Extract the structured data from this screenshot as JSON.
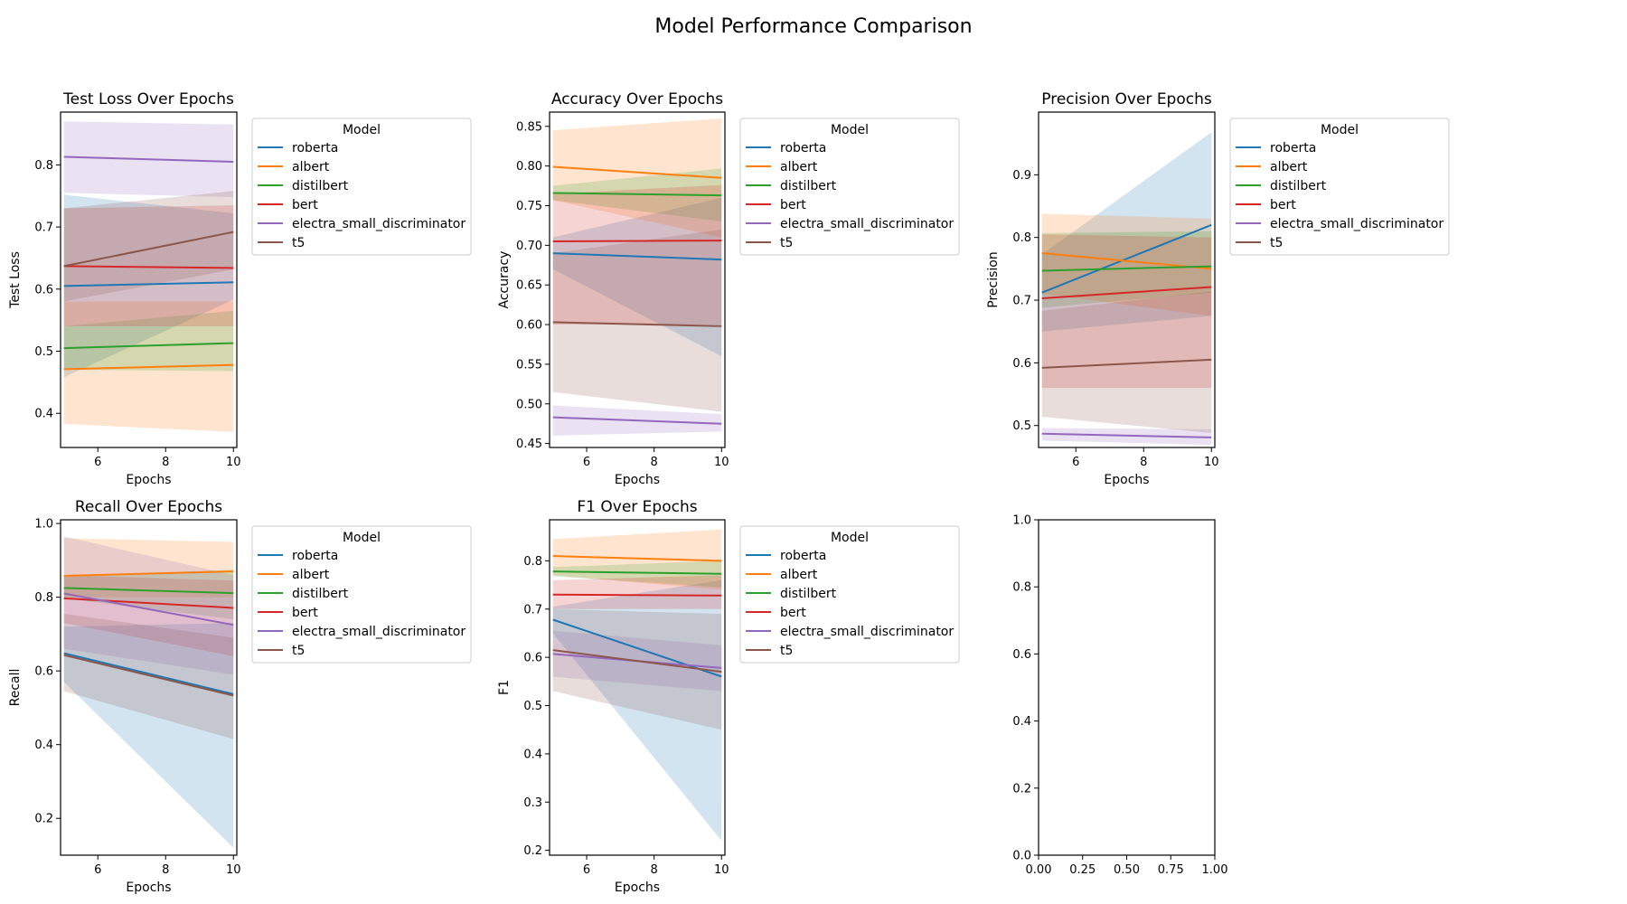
{
  "figure_title": "Model Performance Comparison",
  "legend_title": "Model",
  "colors": {
    "roberta": "#1f77b4",
    "albert": "#ff7f0e",
    "distilbert": "#2ca02c",
    "bert": "#d62728",
    "electra_small_discriminator": "#9467bd",
    "t5": "#8c564b"
  },
  "chart_data": [
    {
      "type": "line",
      "title": "Test Loss Over Epochs",
      "xlabel": "Epochs",
      "ylabel": "Test Loss",
      "xlim": [
        4.9,
        10.1
      ],
      "ylim": [
        0.345,
        0.885
      ],
      "xticks": [
        6,
        8,
        10
      ],
      "yticks": [
        0.4,
        0.5,
        0.6,
        0.7,
        0.8
      ],
      "x": [
        5,
        10
      ],
      "legend": "outside-right",
      "series": [
        {
          "name": "roberta",
          "values": [
            0.605,
            0.611
          ],
          "lower": [
            0.458,
            0.583
          ],
          "upper": [
            0.752,
            0.722
          ]
        },
        {
          "name": "albert",
          "values": [
            0.471,
            0.478
          ],
          "lower": [
            0.383,
            0.37
          ],
          "upper": [
            0.58,
            0.58
          ]
        },
        {
          "name": "distilbert",
          "values": [
            0.505,
            0.513
          ],
          "lower": [
            0.47,
            0.468
          ],
          "upper": [
            0.54,
            0.565
          ]
        },
        {
          "name": "bert",
          "values": [
            0.637,
            0.634
          ],
          "lower": [
            0.54,
            0.54
          ],
          "upper": [
            0.73,
            0.735
          ]
        },
        {
          "name": "electra_small_discriminator",
          "values": [
            0.813,
            0.805
          ],
          "lower": [
            0.755,
            0.748
          ],
          "upper": [
            0.87,
            0.865
          ]
        },
        {
          "name": "t5",
          "values": [
            0.637,
            0.692
          ],
          "lower": [
            0.58,
            0.632
          ],
          "upper": [
            0.73,
            0.758
          ]
        }
      ]
    },
    {
      "type": "line",
      "title": "Accuracy Over Epochs",
      "xlabel": "Epochs",
      "ylabel": "Accuracy",
      "xlim": [
        4.9,
        10.1
      ],
      "ylim": [
        0.445,
        0.868
      ],
      "xticks": [
        6,
        8,
        10
      ],
      "yticks": [
        0.45,
        0.5,
        0.55,
        0.6,
        0.65,
        0.7,
        0.75,
        0.8,
        0.85
      ],
      "x": [
        5,
        10
      ],
      "legend": "outside-right",
      "series": [
        {
          "name": "roberta",
          "values": [
            0.69,
            0.682
          ],
          "lower": [
            0.67,
            0.56
          ],
          "upper": [
            0.71,
            0.76
          ]
        },
        {
          "name": "albert",
          "values": [
            0.799,
            0.785
          ],
          "lower": [
            0.757,
            0.71
          ],
          "upper": [
            0.845,
            0.86
          ]
        },
        {
          "name": "distilbert",
          "values": [
            0.766,
            0.763
          ],
          "lower": [
            0.757,
            0.73
          ],
          "upper": [
            0.775,
            0.797
          ]
        },
        {
          "name": "bert",
          "values": [
            0.705,
            0.706
          ],
          "lower": [
            0.6,
            0.6
          ],
          "upper": [
            0.765,
            0.776
          ]
        },
        {
          "name": "electra_small_discriminator",
          "values": [
            0.483,
            0.475
          ],
          "lower": [
            0.46,
            0.465
          ],
          "upper": [
            0.498,
            0.487
          ]
        },
        {
          "name": "t5",
          "values": [
            0.603,
            0.598
          ],
          "lower": [
            0.515,
            0.49
          ],
          "upper": [
            0.69,
            0.72
          ]
        }
      ]
    },
    {
      "type": "line",
      "title": "Precision Over Epochs",
      "xlabel": "Epochs",
      "ylabel": "Precision",
      "xlim": [
        4.9,
        10.1
      ],
      "ylim": [
        0.465,
        1.0
      ],
      "xticks": [
        6,
        8,
        10
      ],
      "yticks": [
        0.5,
        0.6,
        0.7,
        0.8,
        0.9
      ],
      "x": [
        5,
        10
      ],
      "legend": "outside-right",
      "series": [
        {
          "name": "roberta",
          "values": [
            0.712,
            0.82
          ],
          "lower": [
            0.65,
            0.675
          ],
          "upper": [
            0.773,
            0.968
          ]
        },
        {
          "name": "albert",
          "values": [
            0.775,
            0.75
          ],
          "lower": [
            0.71,
            0.675
          ],
          "upper": [
            0.838,
            0.83
          ]
        },
        {
          "name": "distilbert",
          "values": [
            0.747,
            0.754
          ],
          "lower": [
            0.688,
            0.712
          ],
          "upper": [
            0.807,
            0.81
          ]
        },
        {
          "name": "bert",
          "values": [
            0.703,
            0.721
          ],
          "lower": [
            0.56,
            0.56
          ],
          "upper": [
            0.805,
            0.8
          ]
        },
        {
          "name": "electra_small_discriminator",
          "values": [
            0.487,
            0.481
          ],
          "lower": [
            0.476,
            0.469
          ],
          "upper": [
            0.496,
            0.494
          ]
        },
        {
          "name": "t5",
          "values": [
            0.592,
            0.605
          ],
          "lower": [
            0.514,
            0.488
          ],
          "upper": [
            0.683,
            0.714
          ]
        }
      ]
    },
    {
      "type": "line",
      "title": "Recall Over Epochs",
      "xlabel": "Epochs",
      "ylabel": "Recall",
      "xlim": [
        4.9,
        10.1
      ],
      "ylim": [
        0.1,
        1.01
      ],
      "xticks": [
        6,
        8,
        10
      ],
      "yticks": [
        0.2,
        0.4,
        0.6,
        0.8,
        1.0
      ],
      "x": [
        5,
        10
      ],
      "legend": "outside-right",
      "series": [
        {
          "name": "roberta",
          "values": [
            0.648,
            0.537
          ],
          "lower": [
            0.57,
            0.12
          ],
          "upper": [
            0.72,
            0.73
          ]
        },
        {
          "name": "albert",
          "values": [
            0.858,
            0.87
          ],
          "lower": [
            0.8,
            0.8
          ],
          "upper": [
            0.96,
            0.95
          ]
        },
        {
          "name": "distilbert",
          "values": [
            0.825,
            0.811
          ],
          "lower": [
            0.797,
            0.74
          ],
          "upper": [
            0.855,
            0.875
          ]
        },
        {
          "name": "bert",
          "values": [
            0.797,
            0.771
          ],
          "lower": [
            0.73,
            0.64
          ],
          "upper": [
            0.86,
            0.845
          ]
        },
        {
          "name": "electra_small_discriminator",
          "values": [
            0.81,
            0.725
          ],
          "lower": [
            0.66,
            0.59
          ],
          "upper": [
            0.965,
            0.86
          ]
        },
        {
          "name": "t5",
          "values": [
            0.643,
            0.533
          ],
          "lower": [
            0.545,
            0.415
          ],
          "upper": [
            0.755,
            0.69
          ]
        }
      ]
    },
    {
      "type": "line",
      "title": "F1 Over Epochs",
      "xlabel": "Epochs",
      "ylabel": "F1",
      "xlim": [
        4.9,
        10.1
      ],
      "ylim": [
        0.19,
        0.885
      ],
      "xticks": [
        6,
        8,
        10
      ],
      "yticks": [
        0.2,
        0.3,
        0.4,
        0.5,
        0.6,
        0.7,
        0.8
      ],
      "x": [
        5,
        10
      ],
      "legend": "outside-right",
      "series": [
        {
          "name": "roberta",
          "values": [
            0.678,
            0.56
          ],
          "lower": [
            0.65,
            0.22
          ],
          "upper": [
            0.705,
            0.76
          ]
        },
        {
          "name": "albert",
          "values": [
            0.81,
            0.8
          ],
          "lower": [
            0.77,
            0.74
          ],
          "upper": [
            0.845,
            0.865
          ]
        },
        {
          "name": "distilbert",
          "values": [
            0.778,
            0.773
          ],
          "lower": [
            0.768,
            0.745
          ],
          "upper": [
            0.787,
            0.8
          ]
        },
        {
          "name": "bert",
          "values": [
            0.73,
            0.728
          ],
          "lower": [
            0.7,
            0.7
          ],
          "upper": [
            0.76,
            0.77
          ]
        },
        {
          "name": "electra_small_discriminator",
          "values": [
            0.607,
            0.578
          ],
          "lower": [
            0.56,
            0.53
          ],
          "upper": [
            0.655,
            0.625
          ]
        },
        {
          "name": "t5",
          "values": [
            0.615,
            0.57
          ],
          "lower": [
            0.53,
            0.45
          ],
          "upper": [
            0.7,
            0.69
          ]
        }
      ]
    },
    {
      "type": "line",
      "title": "",
      "xlabel": "",
      "ylabel": "",
      "xlim": [
        0.0,
        1.0
      ],
      "ylim": [
        0.0,
        1.0
      ],
      "xticks": [
        0.0,
        0.25,
        0.5,
        0.75,
        1.0
      ],
      "xtick_labels": [
        "0.00",
        "0.25",
        "0.50",
        "0.75",
        "1.00"
      ],
      "yticks": [
        0.0,
        0.2,
        0.4,
        0.6,
        0.8,
        1.0
      ],
      "ytick_labels": [
        "0.0",
        "0.2",
        "0.4",
        "0.6",
        "0.8",
        "1.0"
      ],
      "x": [],
      "series": []
    }
  ]
}
